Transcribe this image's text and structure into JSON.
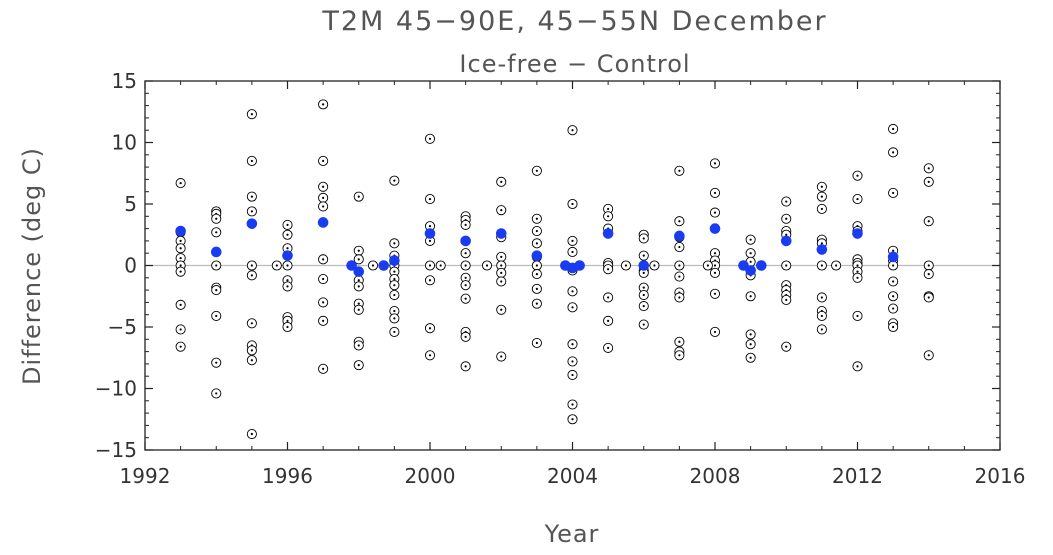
{
  "chart_data": {
    "type": "scatter",
    "title": "T2M 45−90E, 45−55N December",
    "subtitle": "Ice-free − Control",
    "xlabel": "Year",
    "ylabel": "Difference (deg C)",
    "xlim": [
      1992,
      2016
    ],
    "ylim": [
      -15,
      15
    ],
    "x_ticks": [
      "1992",
      "1996",
      "2000",
      "2004",
      "2008",
      "2012",
      "2016"
    ],
    "y_ticks": [
      "15",
      "10",
      "5",
      "0",
      "−5",
      "−10",
      "−15"
    ],
    "zero_line": true,
    "grid": false,
    "series": [
      {
        "marker": "open-circle-dot",
        "color": "#000000",
        "points": [
          [
            1993,
            6.7
          ],
          [
            1993,
            2.7
          ],
          [
            1993,
            2.0
          ],
          [
            1993,
            1.4
          ],
          [
            1993,
            0.6
          ],
          [
            1993,
            0
          ],
          [
            1993,
            -0.5
          ],
          [
            1993,
            -3.2
          ],
          [
            1993,
            -5.2
          ],
          [
            1993,
            -6.6
          ],
          [
            1994,
            4.4
          ],
          [
            1994,
            4.2
          ],
          [
            1994,
            3.8
          ],
          [
            1994,
            2.7
          ],
          [
            1994,
            0
          ],
          [
            1994,
            -1.8
          ],
          [
            1994,
            -2.0
          ],
          [
            1994,
            -4.1
          ],
          [
            1994,
            -7.9
          ],
          [
            1994,
            -10.4
          ],
          [
            1995,
            12.3
          ],
          [
            1995,
            8.5
          ],
          [
            1995,
            5.6
          ],
          [
            1995,
            4.4
          ],
          [
            1995,
            0
          ],
          [
            1995,
            -0.8
          ],
          [
            1995,
            -4.7
          ],
          [
            1995,
            -6.5
          ],
          [
            1995,
            -6.9
          ],
          [
            1995,
            -7.7
          ],
          [
            1995,
            -13.7
          ],
          [
            1995.7,
            0
          ],
          [
            1996,
            3.3
          ],
          [
            1996,
            2.5
          ],
          [
            1996,
            1.4
          ],
          [
            1996,
            0
          ],
          [
            1996,
            -1.2
          ],
          [
            1996,
            -1.7
          ],
          [
            1996,
            -4.2
          ],
          [
            1996,
            -4.5
          ],
          [
            1996,
            -5.0
          ],
          [
            1997,
            13.1
          ],
          [
            1997,
            8.5
          ],
          [
            1997,
            6.4
          ],
          [
            1997,
            5.5
          ],
          [
            1997,
            4.8
          ],
          [
            1997,
            0.5
          ],
          [
            1997,
            -1.1
          ],
          [
            1997,
            -3.0
          ],
          [
            1997,
            -4.5
          ],
          [
            1997,
            -8.4
          ],
          [
            1998,
            5.6
          ],
          [
            1998,
            1.2
          ],
          [
            1998,
            0.5
          ],
          [
            1998,
            -1.2
          ],
          [
            1998,
            -1.7
          ],
          [
            1998,
            -3.1
          ],
          [
            1998,
            -3.6
          ],
          [
            1998,
            -6.2
          ],
          [
            1998,
            -6.5
          ],
          [
            1998,
            -8.1
          ],
          [
            1998.4,
            0
          ],
          [
            1999,
            6.9
          ],
          [
            1999,
            1.8
          ],
          [
            1999,
            0.8
          ],
          [
            1999,
            0
          ],
          [
            1999,
            -0.5
          ],
          [
            1999,
            -1.1
          ],
          [
            1999,
            -1.6
          ],
          [
            1999,
            -2.4
          ],
          [
            1999,
            -3.7
          ],
          [
            1999,
            -4.3
          ],
          [
            1999,
            -5.4
          ],
          [
            2000,
            10.3
          ],
          [
            2000,
            5.4
          ],
          [
            2000,
            3.2
          ],
          [
            2000,
            2.0
          ],
          [
            2000,
            0
          ],
          [
            2000,
            -1.2
          ],
          [
            2000,
            -5.1
          ],
          [
            2000,
            -7.3
          ],
          [
            2000.3,
            0
          ],
          [
            2001,
            4.0
          ],
          [
            2001,
            3.7
          ],
          [
            2001,
            3.3
          ],
          [
            2001,
            2.0
          ],
          [
            2001,
            1.0
          ],
          [
            2001,
            0
          ],
          [
            2001,
            -1.0
          ],
          [
            2001,
            -1.6
          ],
          [
            2001,
            -2.7
          ],
          [
            2001,
            -5.4
          ],
          [
            2001,
            -5.8
          ],
          [
            2001,
            -8.2
          ],
          [
            2001.6,
            0
          ],
          [
            2002,
            6.8
          ],
          [
            2002,
            4.5
          ],
          [
            2002,
            2.3
          ],
          [
            2002,
            0.7
          ],
          [
            2002,
            0
          ],
          [
            2002,
            -0.6
          ],
          [
            2002,
            -1.3
          ],
          [
            2002,
            -3.6
          ],
          [
            2002,
            -7.4
          ],
          [
            2003,
            7.7
          ],
          [
            2003,
            3.8
          ],
          [
            2003,
            2.8
          ],
          [
            2003,
            1.8
          ],
          [
            2003,
            0.7
          ],
          [
            2003,
            0
          ],
          [
            2003,
            -0.7
          ],
          [
            2003,
            -1.9
          ],
          [
            2003,
            -3.1
          ],
          [
            2003,
            -6.3
          ],
          [
            2004,
            11.0
          ],
          [
            2004,
            5.0
          ],
          [
            2004,
            2.0
          ],
          [
            2004,
            1.1
          ],
          [
            2004,
            -0.4
          ],
          [
            2004,
            -2.1
          ],
          [
            2004,
            -3.4
          ],
          [
            2004,
            -6.4
          ],
          [
            2004,
            -7.8
          ],
          [
            2004,
            -8.9
          ],
          [
            2004,
            -11.3
          ],
          [
            2004,
            -12.5
          ],
          [
            2005,
            4.6
          ],
          [
            2005,
            4.0
          ],
          [
            2005,
            3.0
          ],
          [
            2005,
            0.2
          ],
          [
            2005,
            0
          ],
          [
            2005,
            -0.3
          ],
          [
            2005,
            -2.6
          ],
          [
            2005,
            -4.5
          ],
          [
            2005,
            -6.7
          ],
          [
            2005.5,
            0
          ],
          [
            2006,
            2.5
          ],
          [
            2006,
            2.2
          ],
          [
            2006,
            0.8
          ],
          [
            2006,
            0
          ],
          [
            2006,
            -0.4
          ],
          [
            2006,
            -0.6
          ],
          [
            2006,
            -1.8
          ],
          [
            2006,
            -2.4
          ],
          [
            2006,
            -3.3
          ],
          [
            2006,
            -4.8
          ],
          [
            2006.3,
            0
          ],
          [
            2007,
            7.7
          ],
          [
            2007,
            3.6
          ],
          [
            2007,
            2.3
          ],
          [
            2007,
            1.5
          ],
          [
            2007,
            0
          ],
          [
            2007,
            -0.9
          ],
          [
            2007,
            -2.2
          ],
          [
            2007,
            -2.6
          ],
          [
            2007,
            -6.2
          ],
          [
            2007,
            -7.0
          ],
          [
            2007,
            -7.3
          ],
          [
            2008,
            8.3
          ],
          [
            2008,
            5.9
          ],
          [
            2008,
            4.3
          ],
          [
            2008,
            1.0
          ],
          [
            2008,
            0.4
          ],
          [
            2008,
            0
          ],
          [
            2008,
            -0.6
          ],
          [
            2008,
            -2.3
          ],
          [
            2008,
            -5.4
          ],
          [
            2007.8,
            0
          ],
          [
            2009,
            2.1
          ],
          [
            2009,
            1.0
          ],
          [
            2009,
            0.3
          ],
          [
            2009,
            -0.8
          ],
          [
            2009,
            -2.5
          ],
          [
            2009,
            -5.6
          ],
          [
            2009,
            -6.4
          ],
          [
            2009,
            -7.5
          ],
          [
            2010,
            5.2
          ],
          [
            2010,
            3.8
          ],
          [
            2010,
            2.8
          ],
          [
            2010,
            2.5
          ],
          [
            2010,
            0
          ],
          [
            2010,
            -1.6
          ],
          [
            2010,
            -2.0
          ],
          [
            2010,
            -2.4
          ],
          [
            2010,
            -2.8
          ],
          [
            2010,
            -6.6
          ],
          [
            2011,
            6.4
          ],
          [
            2011,
            5.6
          ],
          [
            2011,
            4.6
          ],
          [
            2011,
            2.1
          ],
          [
            2011,
            1.8
          ],
          [
            2011,
            0
          ],
          [
            2011,
            -2.6
          ],
          [
            2011,
            -3.7
          ],
          [
            2011,
            -4.1
          ],
          [
            2011,
            -5.2
          ],
          [
            2011.4,
            0
          ],
          [
            2012,
            7.3
          ],
          [
            2012,
            5.4
          ],
          [
            2012,
            3.2
          ],
          [
            2012,
            2.8
          ],
          [
            2012,
            0.5
          ],
          [
            2012,
            0.2
          ],
          [
            2012,
            0
          ],
          [
            2012,
            -0.5
          ],
          [
            2012,
            -1.0
          ],
          [
            2012,
            -4.1
          ],
          [
            2012,
            -8.2
          ],
          [
            2013,
            11.1
          ],
          [
            2013,
            9.2
          ],
          [
            2013,
            5.9
          ],
          [
            2013,
            1.2
          ],
          [
            2013,
            0.4
          ],
          [
            2013,
            0
          ],
          [
            2013,
            -1.3
          ],
          [
            2013,
            -2.5
          ],
          [
            2013,
            -3.5
          ],
          [
            2013,
            -4.7
          ],
          [
            2013,
            -5.0
          ],
          [
            2014,
            7.9
          ],
          [
            2014,
            6.8
          ],
          [
            2014,
            3.6
          ],
          [
            2014,
            0
          ],
          [
            2014,
            -0.7
          ],
          [
            2014,
            -2.5
          ],
          [
            2014,
            -2.6
          ],
          [
            2014,
            -7.3
          ]
        ]
      },
      {
        "marker": "filled-circle",
        "color": "#1a3cf0",
        "points": [
          [
            1993,
            2.8
          ],
          [
            1994,
            1.1
          ],
          [
            1995,
            3.4
          ],
          [
            1996,
            0.8
          ],
          [
            1997,
            3.5
          ],
          [
            1997.8,
            0
          ],
          [
            1998,
            -0.5
          ],
          [
            1998.7,
            0
          ],
          [
            1999,
            0.4
          ],
          [
            2000,
            2.6
          ],
          [
            2001,
            2.0
          ],
          [
            2002,
            2.6
          ],
          [
            2003,
            0.8
          ],
          [
            2003.8,
            0
          ],
          [
            2004,
            -0.2
          ],
          [
            2004.2,
            0
          ],
          [
            2005,
            2.6
          ],
          [
            2006,
            0
          ],
          [
            2007,
            2.4
          ],
          [
            2008,
            3.0
          ],
          [
            2008.8,
            0
          ],
          [
            2009,
            -0.4
          ],
          [
            2009.3,
            0
          ],
          [
            2010,
            2.0
          ],
          [
            2011,
            1.3
          ],
          [
            2012,
            2.6
          ],
          [
            2013,
            0.7
          ]
        ]
      }
    ]
  }
}
